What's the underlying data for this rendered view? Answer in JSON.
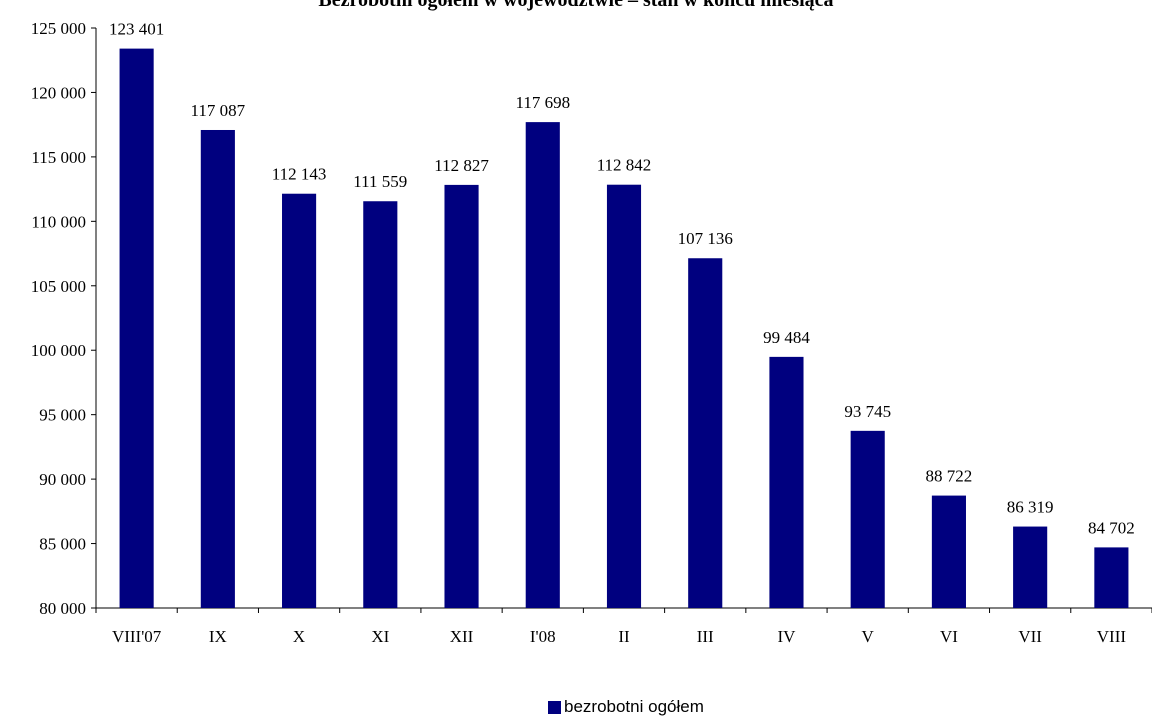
{
  "chart_data": {
    "type": "bar",
    "title": "Bezrobotni ogółem w województwie – stan w końcu miesiąca",
    "categories": [
      "VIII'07",
      "IX",
      "X",
      "XI",
      "XII",
      "I'08",
      "II",
      "III",
      "IV",
      "V",
      "VI",
      "VII",
      "VIII"
    ],
    "series": [
      {
        "name": "bezrobotni ogółem",
        "values": [
          123401,
          117087,
          112143,
          111559,
          112827,
          117698,
          112842,
          107136,
          99484,
          93745,
          88722,
          86319,
          84702
        ],
        "labels": [
          "123 401",
          "117 087",
          "112 143",
          "111 559",
          "112 827",
          "117 698",
          "112 842",
          "107 136",
          "99 484",
          "93 745",
          "88 722",
          "86 319",
          "84 702"
        ]
      }
    ],
    "ylim": [
      80000,
      125000
    ],
    "yticks": [
      80000,
      85000,
      90000,
      95000,
      100000,
      105000,
      110000,
      115000,
      120000,
      125000
    ],
    "ytick_labels": [
      "80 000",
      "85 000",
      "90 000",
      "95 000",
      "100 000",
      "105 000",
      "110 000",
      "115 000",
      "120 000",
      "125 000"
    ],
    "grid": false,
    "legend_position": "bottom-center",
    "bar_color": "#00007f"
  }
}
